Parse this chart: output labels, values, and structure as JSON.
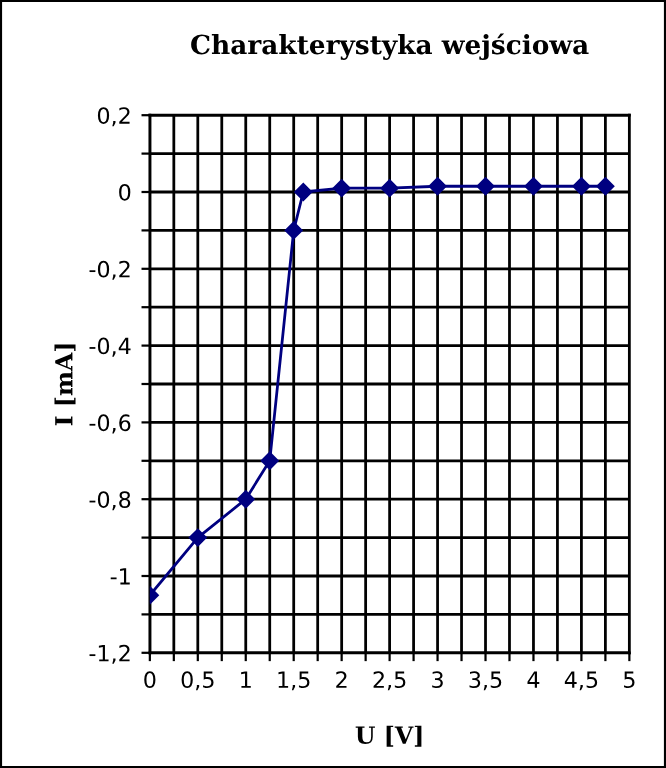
{
  "chart_data": {
    "type": "line",
    "title": "Charakterystyka wejściowa",
    "xlabel": "U [V]",
    "ylabel": "I [mA]",
    "x": [
      0,
      0.5,
      1,
      1.25,
      1.5,
      1.6,
      2,
      2.5,
      3,
      3.5,
      4,
      4.5,
      4.75
    ],
    "series": [
      {
        "color": "#000080",
        "values": [
          -1.05,
          -0.9,
          -0.8,
          -0.7,
          -0.1,
          0,
          0.01,
          0.01,
          0.015,
          0.015,
          0.015,
          0.015,
          0.015
        ]
      }
    ],
    "xlim": [
      0,
      5
    ],
    "ylim": [
      -1.2,
      0.2
    ],
    "xticks": [
      0,
      {
        "value": 0.25,
        "label": null
      },
      {
        "value": 0.5,
        "label": "0,5"
      },
      {
        "value": 0.75,
        "label": null
      },
      1,
      {
        "value": 1.25,
        "label": null
      },
      {
        "value": 1.5,
        "label": "1,5"
      },
      {
        "value": 1.75,
        "label": null
      },
      2,
      {
        "value": 2.25,
        "label": null
      },
      {
        "value": 2.5,
        "label": "2,5"
      },
      {
        "value": 2.75,
        "label": null
      },
      3,
      {
        "value": 3.25,
        "label": null
      },
      {
        "value": 3.5,
        "label": "3,5"
      },
      {
        "value": 3.75,
        "label": null
      },
      4,
      {
        "value": 4.25,
        "label": null
      },
      {
        "value": 4.5,
        "label": "4,5"
      },
      {
        "value": 4.75,
        "label": null
      },
      5
    ],
    "yticks": [
      {
        "value": -1.2,
        "label": "-1,2"
      },
      {
        "value": -1.1,
        "label": null
      },
      -1,
      {
        "value": -0.9,
        "label": null
      },
      {
        "value": -0.8,
        "label": "-0,8"
      },
      {
        "value": -0.7,
        "label": null
      },
      {
        "value": -0.6,
        "label": "-0,6"
      },
      {
        "value": -0.5,
        "label": null
      },
      {
        "value": -0.4,
        "label": "-0,4"
      },
      {
        "value": -0.3,
        "label": null
      },
      {
        "value": -0.2,
        "label": "-0,2"
      },
      {
        "value": -0.1,
        "label": null
      },
      0,
      {
        "value": 0.1,
        "label": null
      },
      {
        "value": 0.2,
        "label": "0,2"
      }
    ],
    "grid": true,
    "marker": "diamond",
    "line_style": "solid"
  }
}
